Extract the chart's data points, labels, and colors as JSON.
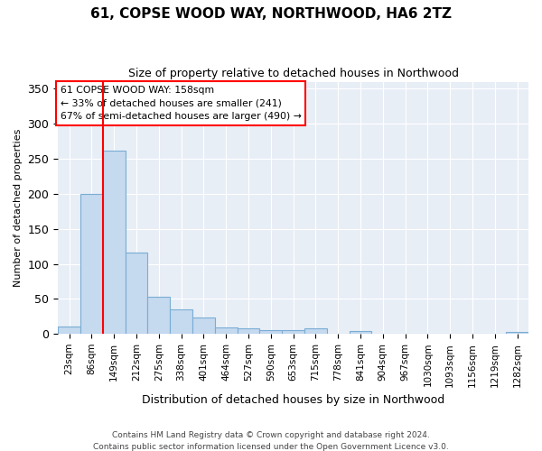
{
  "title": "61, COPSE WOOD WAY, NORTHWOOD, HA6 2TZ",
  "subtitle": "Size of property relative to detached houses in Northwood",
  "xlabel": "Distribution of detached houses by size in Northwood",
  "ylabel": "Number of detached properties",
  "bar_labels": [
    "23sqm",
    "86sqm",
    "149sqm",
    "212sqm",
    "275sqm",
    "338sqm",
    "401sqm",
    "464sqm",
    "527sqm",
    "590sqm",
    "653sqm",
    "715sqm",
    "778sqm",
    "841sqm",
    "904sqm",
    "967sqm",
    "1030sqm",
    "1093sqm",
    "1156sqm",
    "1219sqm",
    "1282sqm"
  ],
  "bar_values": [
    11,
    200,
    262,
    116,
    53,
    35,
    23,
    9,
    8,
    6,
    5,
    8,
    0,
    4,
    0,
    0,
    0,
    0,
    0,
    0,
    3
  ],
  "bar_color": "#c5d9ef",
  "bar_edge_color": "#7aadd4",
  "vline_x": 1.5,
  "vline_color": "red",
  "annotation_text": "61 COPSE WOOD WAY: 158sqm\n← 33% of detached houses are smaller (241)\n67% of semi-detached houses are larger (490) →",
  "annotation_box_color": "white",
  "annotation_box_edge_color": "red",
  "plot_background": "#e8eef6",
  "ylim": [
    0,
    360
  ],
  "yticks": [
    0,
    50,
    100,
    150,
    200,
    250,
    300,
    350
  ],
  "footer_line1": "Contains HM Land Registry data © Crown copyright and database right 2024.",
  "footer_line2": "Contains public sector information licensed under the Open Government Licence v3.0."
}
